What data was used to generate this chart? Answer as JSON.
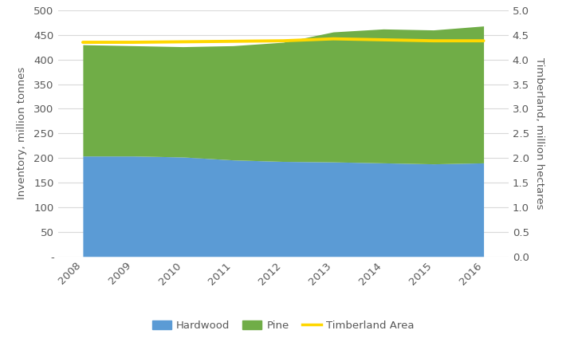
{
  "years": [
    2008,
    2009,
    2010,
    2011,
    2012,
    2013,
    2014,
    2015,
    2016
  ],
  "hardwood": [
    204,
    204,
    202,
    196,
    193,
    192,
    190,
    188,
    190
  ],
  "pine": [
    226,
    224,
    224,
    232,
    242,
    264,
    272,
    272,
    278
  ],
  "timberland_area": [
    4.35,
    4.35,
    4.36,
    4.37,
    4.38,
    4.42,
    4.4,
    4.38,
    4.38
  ],
  "hardwood_color": "#5B9BD5",
  "pine_color": "#70AD47",
  "timberland_color": "#FFD700",
  "ylabel_left": "Inventory, million tonnes",
  "ylabel_right": "Timberland, million hectares",
  "ylim_left": [
    0,
    500
  ],
  "ylim_right": [
    0,
    5.0
  ],
  "yticks_left": [
    0,
    50,
    100,
    150,
    200,
    250,
    300,
    350,
    400,
    450,
    500
  ],
  "yticks_right": [
    0.0,
    0.5,
    1.0,
    1.5,
    2.0,
    2.5,
    3.0,
    3.5,
    4.0,
    4.5,
    5.0
  ],
  "ytick_labels_left": [
    "-",
    "50",
    "100",
    "150",
    "200",
    "250",
    "300",
    "350",
    "400",
    "450",
    "500"
  ],
  "background_color": "#FFFFFF",
  "legend_labels": [
    "Hardwood",
    "Pine",
    "Timberland Area"
  ],
  "axis_label_fontsize": 9.5,
  "tick_fontsize": 9.5,
  "grid_color": "#D9D9D9",
  "text_color": "#595959"
}
